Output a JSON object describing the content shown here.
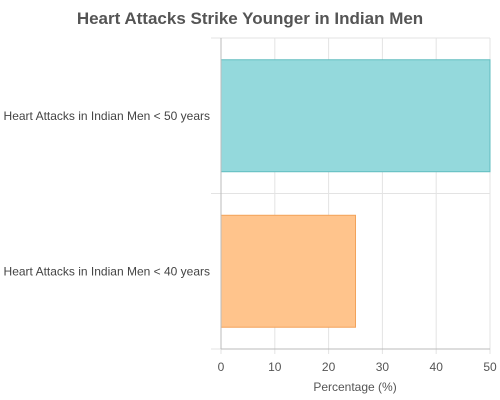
{
  "chart_data": {
    "type": "bar",
    "orientation": "horizontal",
    "title": "Heart Attacks Strike Younger in Indian Men",
    "categories": [
      "Heart Attacks in Indian Men < 50 years",
      "Heart Attacks in Indian Men < 40 years"
    ],
    "values": [
      50,
      25
    ],
    "xlabel": "Percentage (%)",
    "ylabel": "",
    "xlim": [
      0,
      50
    ],
    "xticks": [
      "0",
      "10",
      "20",
      "30",
      "40",
      "50"
    ],
    "grid": true,
    "legend": "none",
    "colors": {
      "bars": [
        "#94d9dc",
        "#ffc48c"
      ],
      "bar_borders": [
        "#5fbcbf",
        "#f2a25a"
      ],
      "grid": "#e3e3e3",
      "axis": "#bbbbbb"
    }
  }
}
